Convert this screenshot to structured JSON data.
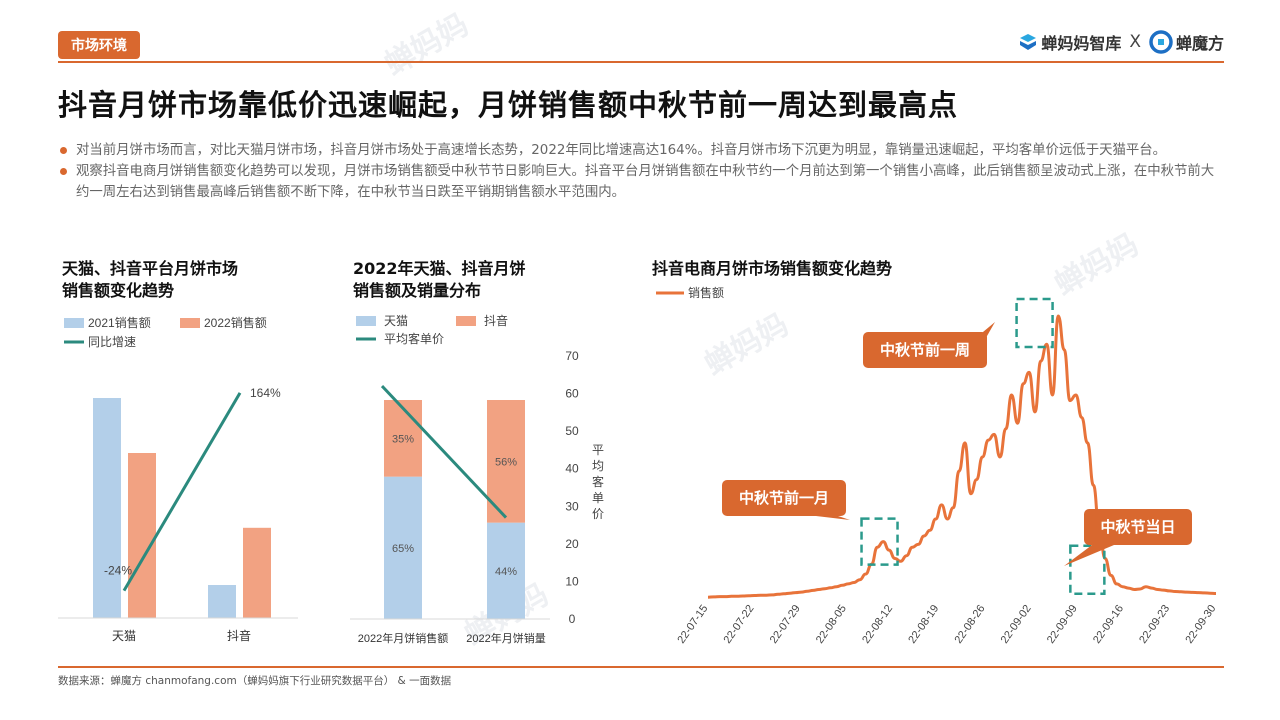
{
  "section_tag": "市场环境",
  "brand": {
    "left": "蝉妈妈智库",
    "separator": "X",
    "right": "蝉魔方"
  },
  "headline": "抖音月饼市场靠低价迅速崛起，月饼销售额中秋节前一周达到最高点",
  "bullets": [
    "对当前月饼市场而言，对比天猫月饼市场，抖音月饼市场处于高速增长态势，2022年同比增速高达164%。抖音月饼市场下沉更为明显，靠销量迅速崛起，平均客单价远低于天猫平台。",
    "观察抖音电商月饼销售额变化趋势可以发现，月饼市场销售额受中秋节节日影响巨大。抖音平台月饼销售额在中秋节约一个月前达到第一个销售小高峰，此后销售额呈波动式上涨，在中秋节前大约一周左右达到销售最高峰后销售额不断下降，在中秋节当日跌至平销期销售额水平范围内。"
  ],
  "source": "数据来源：蝉魔方 chanmofang.com（蝉妈妈旗下行业研究数据平台） & 一面数据",
  "colors": {
    "accent": "#d9682f",
    "blue": "#b3cfe9",
    "orange": "#f2a282",
    "teal": "#2b8a7e",
    "line": "#e8733a",
    "callout": "#d9682f",
    "dashbox": "#2b9a8c"
  },
  "chart_data": [
    {
      "type": "bar",
      "title_lines": [
        "天猫、抖音平台月饼市场",
        "销售额变化趋势"
      ],
      "categories": [
        "天猫",
        "抖音"
      ],
      "series": [
        {
          "name": "2021销售额",
          "values": [
            100,
            15
          ]
        },
        {
          "name": "2022销售额",
          "values": [
            75,
            41
          ]
        }
      ],
      "line_series": {
        "name": "同比增速",
        "values": [
          -24,
          164
        ],
        "labels": [
          "-24%",
          "164%"
        ]
      },
      "ylim": [
        0,
        110
      ]
    },
    {
      "type": "bar",
      "stacked": true,
      "title_lines": [
        "2022年天猫、抖音月饼",
        "销售额及销量分布"
      ],
      "categories": [
        "2022年月饼销售额",
        "2022年月饼销量"
      ],
      "series": [
        {
          "name": "天猫",
          "values": [
            65,
            44
          ],
          "labels": [
            "65%",
            "44%"
          ]
        },
        {
          "name": "抖音",
          "values": [
            35,
            56
          ],
          "labels": [
            "35%",
            "56%"
          ]
        }
      ],
      "line_series": {
        "name": "平均客单价",
        "values": [
          62,
          27
        ]
      },
      "y2label": "平均客单价",
      "y2ticks": [
        0,
        10,
        20,
        30,
        40,
        50,
        60,
        70
      ],
      "y2lim": [
        0,
        70
      ]
    },
    {
      "type": "line",
      "title": "抖音电商月饼市场销售额变化趋势",
      "series_name": "销售额",
      "x_tick_labels": [
        "22-07-15",
        "22-07-22",
        "22-07-29",
        "22-08-05",
        "22-08-12",
        "22-08-19",
        "22-08-26",
        "22-09-02",
        "22-09-09",
        "22-09-16",
        "22-09-23",
        "22-09-30"
      ],
      "x_start": "2022-07-15",
      "values": [
        0.3,
        0.4,
        0.5,
        0.5,
        0.6,
        0.6,
        0.7,
        0.8,
        0.9,
        1.0,
        1.0,
        1.1,
        1.3,
        1.5,
        1.7,
        1.9,
        2.1,
        2.4,
        2.7,
        3.0,
        3.3,
        3.6,
        4.0,
        4.5,
        5.0,
        5.5,
        6.5,
        8.5,
        12,
        18,
        20,
        17,
        14,
        13,
        15,
        18,
        19,
        22,
        24,
        28,
        33,
        28,
        32,
        45,
        55,
        37,
        42,
        50,
        56,
        58,
        50,
        60,
        72,
        62,
        76,
        80,
        66,
        84,
        90,
        72,
        100,
        88,
        70,
        72,
        64,
        55,
        40,
        25,
        14,
        8,
        5,
        4,
        3.5,
        3,
        3.2,
        4,
        3.5,
        3,
        2.8,
        2.5,
        2.3,
        2.2,
        2.1,
        2.0,
        1.9,
        1.8,
        1.7,
        1.6
      ],
      "ylim": [
        0,
        100
      ],
      "annotations": [
        {
          "text": "中秋节前一月",
          "at": "22-08-10"
        },
        {
          "text": "中秋节前一周",
          "at": "22-09-03"
        },
        {
          "text": "中秋节当日",
          "at": "22-09-10"
        }
      ]
    }
  ]
}
